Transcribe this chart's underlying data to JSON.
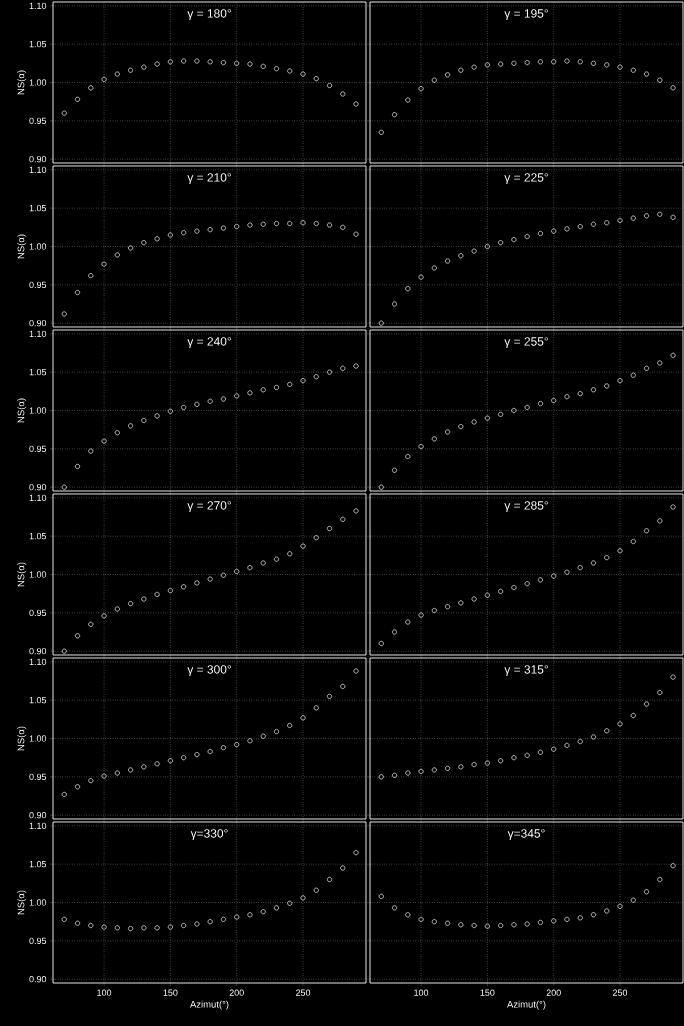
{
  "chart_data": [
    {
      "type": "scatter",
      "title": "γ = 180°",
      "ylabel": "NS(α)",
      "tick_labels": "y",
      "x": [
        70,
        80,
        90,
        100,
        110,
        120,
        130,
        140,
        150,
        160,
        170,
        180,
        190,
        200,
        210,
        220,
        230,
        240,
        250,
        260,
        270,
        280,
        290
      ],
      "values": [
        0.96,
        0.978,
        0.993,
        1.004,
        1.011,
        1.016,
        1.02,
        1.024,
        1.027,
        1.028,
        1.028,
        1.027,
        1.026,
        1.025,
        1.024,
        1.021,
        1.018,
        1.015,
        1.011,
        1.005,
        0.996,
        0.985,
        0.972
      ],
      "color": "#ffffff",
      "marker": "circle",
      "grid": true,
      "xlim": [
        61.5,
        297.5
      ],
      "ylim": [
        0.895,
        1.105
      ],
      "xticks": [
        100,
        150,
        200,
        250
      ],
      "yticks": [
        {
          "value": 0.9,
          "label": "0.90"
        },
        {
          "value": 0.95,
          "label": "0.95"
        },
        {
          "value": 1.0,
          "label": "1.00"
        },
        {
          "value": 1.05,
          "label": "1.05"
        },
        {
          "value": 1.1,
          "label": "1.10"
        }
      ]
    },
    {
      "type": "scatter",
      "title": "γ = 195°",
      "tick_labels": false,
      "x": [
        70,
        80,
        90,
        100,
        110,
        120,
        130,
        140,
        150,
        160,
        170,
        180,
        190,
        200,
        210,
        220,
        230,
        240,
        250,
        260,
        270,
        280,
        290
      ],
      "values": [
        0.935,
        0.958,
        0.977,
        0.992,
        1.003,
        1.01,
        1.016,
        1.02,
        1.023,
        1.024,
        1.025,
        1.026,
        1.027,
        1.027,
        1.028,
        1.027,
        1.025,
        1.023,
        1.02,
        1.016,
        1.011,
        1.003,
        0.993
      ],
      "color": "#ffffff",
      "marker": "circle",
      "grid": true,
      "xlim": [
        61.5,
        297.5
      ],
      "ylim": [
        0.895,
        1.105
      ],
      "xticks": [
        100,
        150,
        200,
        250
      ],
      "yticks": [
        {
          "value": 0.9,
          "label": null
        },
        {
          "value": 0.95,
          "label": null
        },
        {
          "value": 1.0,
          "label": null
        },
        {
          "value": 1.05,
          "label": null
        },
        {
          "value": 1.1,
          "label": null
        }
      ]
    },
    {
      "type": "scatter",
      "title": "γ = 210°",
      "ylabel": "NS(α)",
      "tick_labels": "y",
      "x": [
        70,
        80,
        90,
        100,
        110,
        120,
        130,
        140,
        150,
        160,
        170,
        180,
        190,
        200,
        210,
        220,
        230,
        240,
        250,
        260,
        270,
        280,
        290
      ],
      "values": [
        0.912,
        0.94,
        0.962,
        0.977,
        0.989,
        0.998,
        1.005,
        1.01,
        1.015,
        1.018,
        1.02,
        1.022,
        1.024,
        1.026,
        1.028,
        1.029,
        1.03,
        1.03,
        1.031,
        1.03,
        1.028,
        1.025,
        1.016
      ],
      "color": "#ffffff",
      "marker": "circle",
      "grid": true,
      "xlim": [
        61.5,
        297.5
      ],
      "ylim": [
        0.895,
        1.105
      ],
      "xticks": [
        100,
        150,
        200,
        250
      ],
      "yticks": [
        {
          "value": 0.9,
          "label": "0.90"
        },
        {
          "value": 0.95,
          "label": "0.95"
        },
        {
          "value": 1.0,
          "label": "1.00"
        },
        {
          "value": 1.05,
          "label": "1.05"
        },
        {
          "value": 1.1,
          "label": "1.10"
        }
      ]
    },
    {
      "type": "scatter",
      "title": "γ = 225°",
      "tick_labels": false,
      "x": [
        70,
        80,
        90,
        100,
        110,
        120,
        130,
        140,
        150,
        160,
        170,
        180,
        190,
        200,
        210,
        220,
        230,
        240,
        250,
        260,
        270,
        280,
        290
      ],
      "values": [
        0.9,
        0.925,
        0.945,
        0.96,
        0.972,
        0.981,
        0.988,
        0.994,
        1.0,
        1.005,
        1.009,
        1.013,
        1.017,
        1.02,
        1.023,
        1.026,
        1.029,
        1.031,
        1.034,
        1.037,
        1.04,
        1.042,
        1.038
      ],
      "color": "#ffffff",
      "marker": "circle",
      "grid": true,
      "xlim": [
        61.5,
        297.5
      ],
      "ylim": [
        0.895,
        1.105
      ],
      "xticks": [
        100,
        150,
        200,
        250
      ],
      "yticks": [
        {
          "value": 0.9,
          "label": null
        },
        {
          "value": 0.95,
          "label": null
        },
        {
          "value": 1.0,
          "label": null
        },
        {
          "value": 1.05,
          "label": null
        },
        {
          "value": 1.1,
          "label": null
        }
      ]
    },
    {
      "type": "scatter",
      "title": "γ = 240°",
      "ylabel": "NS(α)",
      "tick_labels": "y",
      "x": [
        70,
        80,
        90,
        100,
        110,
        120,
        130,
        140,
        150,
        160,
        170,
        180,
        190,
        200,
        210,
        220,
        230,
        240,
        250,
        260,
        270,
        280,
        290
      ],
      "values": [
        0.9,
        0.927,
        0.947,
        0.96,
        0.971,
        0.98,
        0.987,
        0.993,
        0.999,
        1.004,
        1.008,
        1.012,
        1.015,
        1.019,
        1.023,
        1.027,
        1.03,
        1.034,
        1.039,
        1.044,
        1.05,
        1.055,
        1.058
      ],
      "color": "#ffffff",
      "marker": "circle",
      "grid": true,
      "xlim": [
        61.5,
        297.5
      ],
      "ylim": [
        0.895,
        1.105
      ],
      "xticks": [
        100,
        150,
        200,
        250
      ],
      "yticks": [
        {
          "value": 0.9,
          "label": "0.90"
        },
        {
          "value": 0.95,
          "label": "0.95"
        },
        {
          "value": 1.0,
          "label": "1.00"
        },
        {
          "value": 1.05,
          "label": "1.05"
        },
        {
          "value": 1.1,
          "label": "1.10"
        }
      ]
    },
    {
      "type": "scatter",
      "title": "γ = 255°",
      "tick_labels": false,
      "x": [
        70,
        80,
        90,
        100,
        110,
        120,
        130,
        140,
        150,
        160,
        170,
        180,
        190,
        200,
        210,
        220,
        230,
        240,
        250,
        260,
        270,
        280,
        290
      ],
      "values": [
        0.9,
        0.922,
        0.94,
        0.953,
        0.963,
        0.972,
        0.979,
        0.985,
        0.99,
        0.995,
        1.0,
        1.004,
        1.009,
        1.013,
        1.018,
        1.022,
        1.027,
        1.032,
        1.039,
        1.046,
        1.055,
        1.062,
        1.072
      ],
      "color": "#ffffff",
      "marker": "circle",
      "grid": true,
      "xlim": [
        61.5,
        297.5
      ],
      "ylim": [
        0.895,
        1.105
      ],
      "xticks": [
        100,
        150,
        200,
        250
      ],
      "yticks": [
        {
          "value": 0.9,
          "label": null
        },
        {
          "value": 0.95,
          "label": null
        },
        {
          "value": 1.0,
          "label": null
        },
        {
          "value": 1.05,
          "label": null
        },
        {
          "value": 1.1,
          "label": null
        }
      ]
    },
    {
      "type": "scatter",
      "title": "γ = 270°",
      "ylabel": "NS(α)",
      "tick_labels": "y",
      "x": [
        70,
        80,
        90,
        100,
        110,
        120,
        130,
        140,
        150,
        160,
        170,
        180,
        190,
        200,
        210,
        220,
        230,
        240,
        250,
        260,
        270,
        280,
        290
      ],
      "values": [
        0.9,
        0.92,
        0.935,
        0.946,
        0.955,
        0.962,
        0.968,
        0.974,
        0.979,
        0.984,
        0.989,
        0.994,
        0.999,
        1.004,
        1.009,
        1.015,
        1.02,
        1.027,
        1.037,
        1.048,
        1.06,
        1.072,
        1.083
      ],
      "color": "#ffffff",
      "marker": "circle",
      "grid": true,
      "xlim": [
        61.5,
        297.5
      ],
      "ylim": [
        0.895,
        1.105
      ],
      "xticks": [
        100,
        150,
        200,
        250
      ],
      "yticks": [
        {
          "value": 0.9,
          "label": "0.90"
        },
        {
          "value": 0.95,
          "label": "0.95"
        },
        {
          "value": 1.0,
          "label": "1.00"
        },
        {
          "value": 1.05,
          "label": "1.05"
        },
        {
          "value": 1.1,
          "label": "1.10"
        }
      ]
    },
    {
      "type": "scatter",
      "title": "γ = 285°",
      "tick_labels": false,
      "x": [
        70,
        80,
        90,
        100,
        110,
        120,
        130,
        140,
        150,
        160,
        170,
        180,
        190,
        200,
        210,
        220,
        230,
        240,
        250,
        260,
        270,
        280,
        290
      ],
      "values": [
        0.91,
        0.925,
        0.938,
        0.947,
        0.953,
        0.958,
        0.963,
        0.968,
        0.973,
        0.978,
        0.983,
        0.988,
        0.993,
        0.998,
        1.003,
        1.009,
        1.015,
        1.022,
        1.031,
        1.043,
        1.057,
        1.07,
        1.088
      ],
      "color": "#ffffff",
      "marker": "circle",
      "grid": true,
      "xlim": [
        61.5,
        297.5
      ],
      "ylim": [
        0.895,
        1.105
      ],
      "xticks": [
        100,
        150,
        200,
        250
      ],
      "yticks": [
        {
          "value": 0.9,
          "label": null
        },
        {
          "value": 0.95,
          "label": null
        },
        {
          "value": 1.0,
          "label": null
        },
        {
          "value": 1.05,
          "label": null
        },
        {
          "value": 1.1,
          "label": null
        }
      ]
    },
    {
      "type": "scatter",
      "title": "γ = 300°",
      "ylabel": "NS(α)",
      "tick_labels": "y",
      "x": [
        70,
        80,
        90,
        100,
        110,
        120,
        130,
        140,
        150,
        160,
        170,
        180,
        190,
        200,
        210,
        220,
        230,
        240,
        250,
        260,
        270,
        280,
        290
      ],
      "values": [
        0.927,
        0.937,
        0.945,
        0.951,
        0.955,
        0.959,
        0.963,
        0.967,
        0.971,
        0.975,
        0.979,
        0.983,
        0.988,
        0.992,
        0.997,
        1.003,
        1.009,
        1.017,
        1.027,
        1.04,
        1.055,
        1.068,
        1.088
      ],
      "color": "#ffffff",
      "marker": "circle",
      "grid": true,
      "xlim": [
        61.5,
        297.5
      ],
      "ylim": [
        0.895,
        1.105
      ],
      "xticks": [
        100,
        150,
        200,
        250
      ],
      "yticks": [
        {
          "value": 0.9,
          "label": "0.90"
        },
        {
          "value": 0.95,
          "label": "0.95"
        },
        {
          "value": 1.0,
          "label": "1.00"
        },
        {
          "value": 1.05,
          "label": "1.05"
        },
        {
          "value": 1.1,
          "label": "1.10"
        }
      ]
    },
    {
      "type": "scatter",
      "title": "γ = 315°",
      "tick_labels": false,
      "x": [
        70,
        80,
        90,
        100,
        110,
        120,
        130,
        140,
        150,
        160,
        170,
        180,
        190,
        200,
        210,
        220,
        230,
        240,
        250,
        260,
        270,
        280,
        290
      ],
      "values": [
        0.95,
        0.952,
        0.955,
        0.957,
        0.959,
        0.961,
        0.963,
        0.966,
        0.968,
        0.971,
        0.975,
        0.978,
        0.982,
        0.986,
        0.991,
        0.996,
        1.002,
        1.01,
        1.019,
        1.03,
        1.045,
        1.06,
        1.08
      ],
      "color": "#ffffff",
      "marker": "circle",
      "grid": true,
      "xlim": [
        61.5,
        297.5
      ],
      "ylim": [
        0.895,
        1.105
      ],
      "xticks": [
        100,
        150,
        200,
        250
      ],
      "yticks": [
        {
          "value": 0.9,
          "label": null
        },
        {
          "value": 0.95,
          "label": null
        },
        {
          "value": 1.0,
          "label": null
        },
        {
          "value": 1.05,
          "label": null
        },
        {
          "value": 1.1,
          "label": null
        }
      ]
    },
    {
      "type": "scatter",
      "title": "γ=330°",
      "xlabel": "Azimut(°)",
      "ylabel": "NS(α)",
      "x": [
        70,
        80,
        90,
        100,
        110,
        120,
        130,
        140,
        150,
        160,
        170,
        180,
        190,
        200,
        210,
        220,
        230,
        240,
        250,
        260,
        270,
        280,
        290
      ],
      "values": [
        0.978,
        0.973,
        0.97,
        0.968,
        0.967,
        0.966,
        0.967,
        0.967,
        0.968,
        0.97,
        0.972,
        0.975,
        0.978,
        0.981,
        0.984,
        0.988,
        0.993,
        0.999,
        1.006,
        1.016,
        1.03,
        1.045,
        1.065
      ],
      "color": "#ffffff",
      "marker": "circle",
      "grid": true,
      "xlim": [
        61.5,
        297.5
      ],
      "ylim": [
        0.895,
        1.105
      ],
      "xticks": [
        100,
        150,
        200,
        250
      ],
      "yticks": [
        {
          "value": 0.9,
          "label": "0.90"
        },
        {
          "value": 0.95,
          "label": "0.95"
        },
        {
          "value": 1.0,
          "label": "1.00"
        },
        {
          "value": 1.05,
          "label": "1.05"
        },
        {
          "value": 1.1,
          "label": "1.10"
        }
      ]
    },
    {
      "type": "scatter",
      "title": "γ=345°",
      "xlabel": "Azimut(°)",
      "tick_labels": "x",
      "x": [
        70,
        80,
        90,
        100,
        110,
        120,
        130,
        140,
        150,
        160,
        170,
        180,
        190,
        200,
        210,
        220,
        230,
        240,
        250,
        260,
        270,
        280,
        290
      ],
      "values": [
        1.008,
        0.993,
        0.984,
        0.978,
        0.975,
        0.973,
        0.971,
        0.97,
        0.969,
        0.97,
        0.971,
        0.972,
        0.974,
        0.976,
        0.978,
        0.98,
        0.984,
        0.989,
        0.995,
        1.003,
        1.014,
        1.03,
        1.048
      ],
      "color": "#ffffff",
      "marker": "circle",
      "grid": true,
      "xlim": [
        61.5,
        297.5
      ],
      "ylim": [
        0.895,
        1.105
      ],
      "xticks": [
        100,
        150,
        200,
        250
      ],
      "yticks": [
        {
          "value": 0.9,
          "label": null
        },
        {
          "value": 0.95,
          "label": null
        },
        {
          "value": 1.0,
          "label": null
        },
        {
          "value": 1.05,
          "label": null
        },
        {
          "value": 1.1,
          "label": null
        }
      ]
    }
  ]
}
